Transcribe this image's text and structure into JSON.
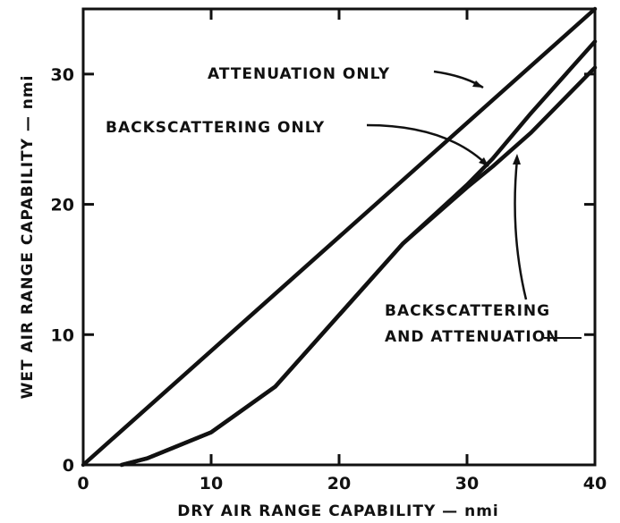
{
  "chart_data": {
    "type": "line",
    "xlabel": "DRY AIR RANGE CAPABILITY — nmi",
    "ylabel": "WET AIR RANGE CAPABILITY — nmi",
    "xlim": [
      0,
      40
    ],
    "ylim": [
      0,
      35
    ],
    "xticks": [
      0,
      10,
      20,
      30,
      40
    ],
    "yticks": [
      0,
      10,
      20,
      30
    ],
    "series": [
      {
        "name": "ATTENUATION ONLY",
        "color": "#111111",
        "x": [
          0,
          40
        ],
        "values": [
          0,
          35
        ]
      },
      {
        "name": "BACKSCATTERING ONLY",
        "color": "#111111",
        "x": [
          3,
          5,
          10,
          15,
          20,
          25,
          30,
          32,
          35,
          40
        ],
        "values": [
          0,
          0.5,
          2.5,
          6,
          11.5,
          17,
          21.5,
          23.5,
          27,
          32.5
        ]
      },
      {
        "name": "BACKSCATTERING AND ATTENUATION",
        "color": "#111111",
        "x": [
          3,
          5,
          10,
          15,
          20,
          25,
          30,
          32,
          35,
          40
        ],
        "values": [
          0,
          0.5,
          2.5,
          6,
          11.5,
          17,
          21.3,
          22.9,
          25.5,
          30.5
        ]
      }
    ]
  }
}
